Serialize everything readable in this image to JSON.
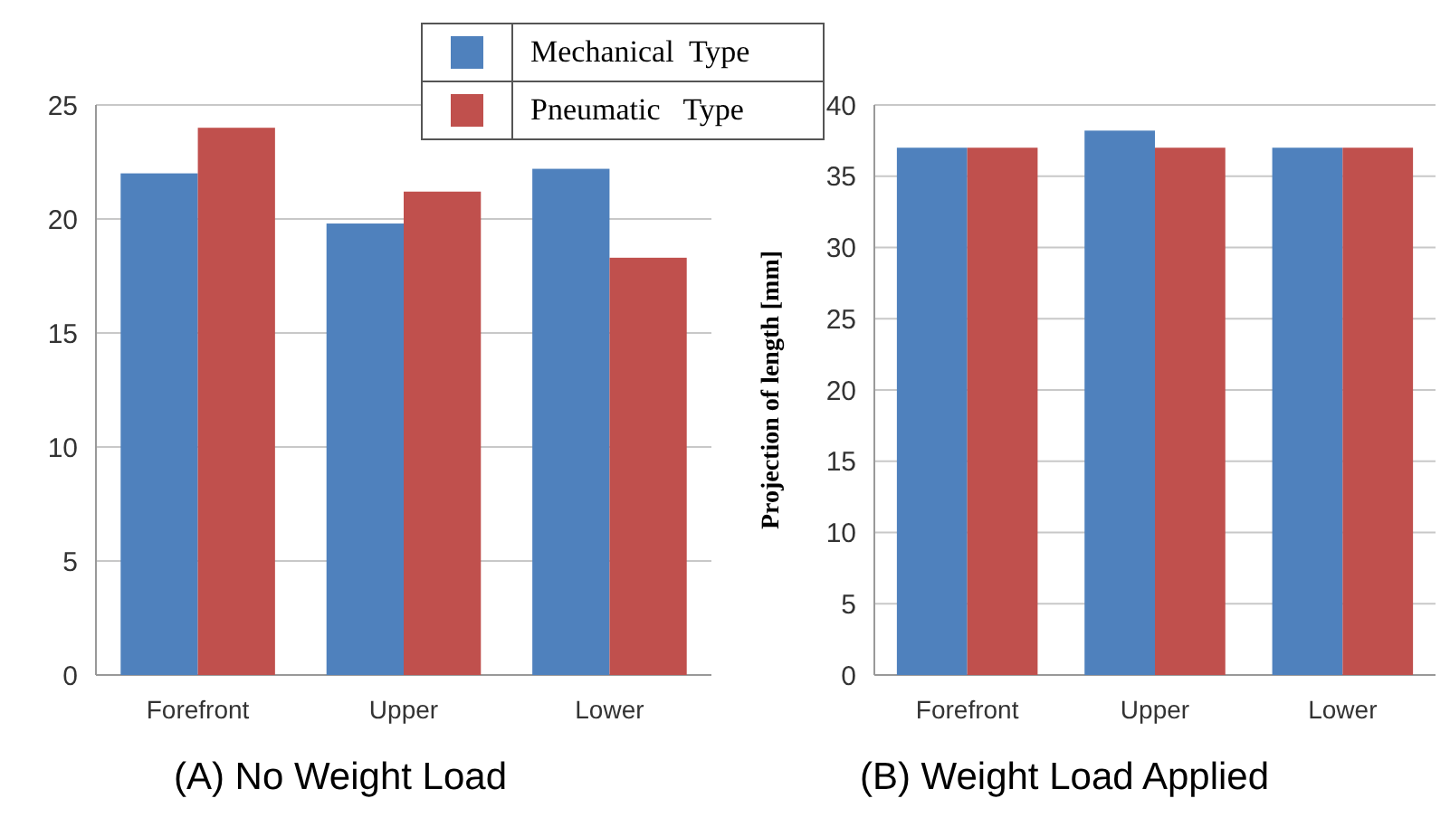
{
  "chart_data": [
    {
      "type": "bar",
      "title": "(A) No Weight Load",
      "categories": [
        "Forefront",
        "Upper",
        "Lower"
      ],
      "series": [
        {
          "name": "Mechanical  Type",
          "color": "#4f81bd",
          "values": [
            22,
            19.8,
            22.2
          ]
        },
        {
          "name": "Pneumatic   Type",
          "color": "#c0504d",
          "values": [
            24,
            21.2,
            18.3
          ]
        }
      ],
      "ylim": [
        0,
        25
      ],
      "yticks": [
        0,
        5,
        10,
        15,
        20,
        25
      ],
      "grid": "y",
      "legend": "top right"
    },
    {
      "type": "bar",
      "title": "(B) Weight Load Applied",
      "ylabel": "Projection of length [mm]",
      "categories": [
        "Forefront",
        "Upper",
        "Lower"
      ],
      "series": [
        {
          "color": "#4f81bd",
          "values": [
            37,
            38.2,
            37
          ]
        },
        {
          "color": "#c0504d",
          "values": [
            37,
            37,
            37
          ]
        }
      ],
      "ylim": [
        0,
        40
      ],
      "yticks": [
        0,
        5,
        10,
        15,
        20,
        25,
        30,
        35,
        40
      ],
      "grid": "y"
    }
  ]
}
